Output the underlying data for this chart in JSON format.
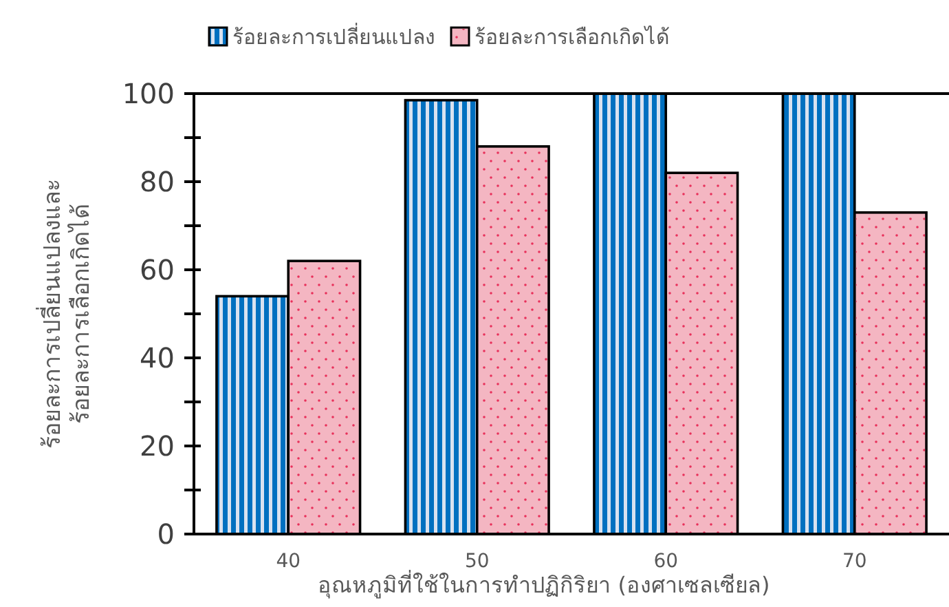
{
  "chart_data": {
    "type": "bar",
    "xlabel": "อุณหภูมิที่ใช้ในการทำปฏิกิริยา (องศาเซลเซียล)",
    "ylabel": "ร้อยละการเปลี่ยนแปลงและ\nร้อยละการเลือกเกิดได้",
    "categories": [
      "40",
      "50",
      "60",
      "70"
    ],
    "series": [
      {
        "name": "ร้อยละการเปลี่ยนแปลง",
        "color": "#0070c0",
        "values": [
          54,
          98.5,
          100,
          100
        ]
      },
      {
        "name": "ร้อยละการเลือกเกิดได้",
        "color": "#f4b6c2",
        "values": [
          62,
          88,
          82,
          73
        ]
      }
    ],
    "ylim": [
      0,
      100
    ],
    "yticks": [
      0,
      {
        "value": 10,
        "label": null
      },
      20,
      {
        "value": 30,
        "label": null
      },
      40,
      {
        "value": 50,
        "label": null
      },
      60,
      {
        "value": 70,
        "label": null
      },
      80,
      {
        "value": 90,
        "label": null
      },
      100
    ],
    "legend": "top",
    "grid": false
  }
}
